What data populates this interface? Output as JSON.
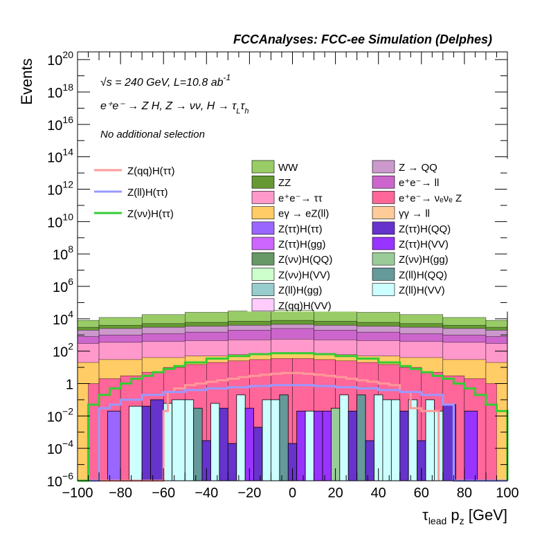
{
  "chart_data": {
    "type": "bar",
    "title": "FCCAnalyses: FCC-ee Simulation (Delphes)",
    "annotations": {
      "energy": "√s = 240 GeV, L=10.8 ab",
      "energy_exp": "-1",
      "process_lead": "e⁺e⁻ → Z H, Z → νν, H → τ",
      "process_sub1": "L",
      "process_tau2": "τ",
      "process_sub2": "h",
      "selection": "No additional selection"
    },
    "xlabel": "τ",
    "xlabel_sub": "lead",
    "xlabel_rest": " p",
    "xlabel_sub2": "z",
    "xlabel_unit": " [GeV]",
    "ylabel": "Events",
    "xlim": [
      -100,
      100
    ],
    "ylim": [
      1e-06,
      3e+20
    ],
    "yscale": "log",
    "x_ticks": [
      -100,
      -80,
      -60,
      -40,
      -20,
      0,
      20,
      40,
      60,
      80,
      100
    ],
    "x_tick_labels": [
      "−100",
      "−80",
      "−60",
      "−40",
      "−20",
      "0",
      "20",
      "40",
      "60",
      "80",
      "100"
    ],
    "y_ticks": [
      {
        "value": 1e-06,
        "base": "10",
        "exp": "−6"
      },
      {
        "value": 0.0001,
        "base": "10",
        "exp": "−4"
      },
      {
        "value": 0.01,
        "base": "10",
        "exp": "−2"
      },
      {
        "value": 1,
        "base": "1",
        "exp": ""
      },
      {
        "value": 100.0,
        "base": "10",
        "exp": "2"
      },
      {
        "value": 10000.0,
        "base": "10",
        "exp": "4"
      },
      {
        "value": 1000000.0,
        "base": "10",
        "exp": "6"
      },
      {
        "value": 100000000.0,
        "base": "10",
        "exp": "8"
      },
      {
        "value": 10000000000.0,
        "base": "10",
        "exp": "10"
      },
      {
        "value": 1000000000000.0,
        "base": "10",
        "exp": "12"
      },
      {
        "value": 100000000000000.0,
        "base": "10",
        "exp": "14"
      },
      {
        "value": 1e+16,
        "base": "10",
        "exp": "16"
      },
      {
        "value": 1e+18,
        "base": "10",
        "exp": "18"
      },
      {
        "value": 1e+20,
        "base": "10",
        "exp": "20"
      }
    ],
    "stacked_backgrounds": [
      {
        "name": "WW",
        "color": "#99cc66",
        "edges": [
          -100,
          -90,
          -70,
          -50,
          -30,
          -10,
          10,
          30,
          50,
          70,
          90,
          100
        ],
        "tops": [
          8000,
          12000,
          18000,
          25000,
          30000,
          33000,
          30000,
          25000,
          18000,
          12000,
          8000
        ]
      },
      {
        "name": "ZZ",
        "color": "#669933",
        "edges": [
          -100,
          -90,
          -70,
          -50,
          -30,
          -10,
          10,
          30,
          50,
          70,
          90,
          100
        ],
        "tops": [
          3000,
          4000,
          5000,
          6000,
          7000,
          8000,
          7000,
          6000,
          5000,
          4000,
          3000
        ]
      },
      {
        "name": "Z → QQ",
        "color": "#cc99cc",
        "edges": [
          -100,
          -90,
          -70,
          -50,
          -30,
          -10,
          10,
          30,
          50,
          70,
          90,
          100
        ],
        "tops": [
          2000,
          2500,
          3000,
          3500,
          4000,
          4500,
          4000,
          3500,
          3000,
          2500,
          2000
        ]
      },
      {
        "name": "e⁺e⁻ → ll",
        "color": "#cc66cc",
        "edges": [
          -100,
          -90,
          -70,
          -50,
          -30,
          -10,
          10,
          30,
          50,
          70,
          90,
          100
        ],
        "tops": [
          800,
          1000,
          1200,
          1500,
          2000,
          2500,
          2000,
          1500,
          1200,
          1000,
          800
        ]
      },
      {
        "name": "e⁺e⁻ → ττ",
        "color": "#ff99cc",
        "edges": [
          -100,
          -90,
          -70,
          -50,
          -30,
          -10,
          10,
          30,
          50,
          70,
          90,
          100
        ],
        "tops": [
          300,
          350,
          400,
          450,
          500,
          550,
          500,
          450,
          400,
          350,
          300
        ]
      },
      {
        "name": "eγ → eZ(ll)",
        "color": "#ffcc66",
        "edges": [
          -100,
          -90,
          -70,
          -50,
          -30,
          -10,
          10,
          30,
          50,
          70,
          90,
          100
        ],
        "tops": [
          20,
          30,
          40,
          50,
          60,
          70,
          60,
          50,
          40,
          30,
          20
        ]
      },
      {
        "name": "e⁺e⁻ → νₑνₑ Z",
        "color": "#ff6699",
        "edges": [
          -100,
          -95,
          -90,
          -80,
          -70,
          -60,
          -50,
          -40,
          -30,
          -20,
          -10,
          0,
          10,
          20,
          30,
          40,
          50,
          60,
          70,
          80,
          90,
          95,
          100
        ],
        "tops": [
          1e-06,
          1,
          2,
          3,
          5,
          10,
          15,
          20,
          25,
          30,
          35,
          35,
          30,
          25,
          20,
          15,
          10,
          5,
          3,
          2,
          1,
          1e-06
        ]
      }
    ],
    "signal_lines": [
      {
        "name": "Z(qq)H(ττ)",
        "color": "#ff9999",
        "edges": [
          -100,
          -60,
          -58,
          -55,
          -50,
          -45,
          -40,
          -35,
          -30,
          -25,
          -20,
          -15,
          -10,
          -5,
          0,
          5,
          10,
          15,
          20,
          25,
          30,
          35,
          40,
          45,
          50,
          55,
          60,
          65,
          68
        ],
        "values": [
          1e-06,
          0.02,
          0.3,
          0.5,
          0.8,
          1.0,
          1.3,
          1.6,
          2.0,
          2.5,
          3.0,
          3.5,
          4.0,
          4.5,
          4.5,
          4.0,
          3.5,
          3.0,
          2.5,
          2.0,
          1.6,
          1.3,
          1.0,
          0.8,
          0.3,
          0.03,
          0.02,
          0.02
        ]
      },
      {
        "name": "Z(ll)H(ττ)",
        "color": "#9999ff",
        "edges": [
          -100,
          -90,
          -85,
          -80,
          -70,
          -60,
          -50,
          -40,
          -30,
          -20,
          -10,
          0,
          10,
          20,
          30,
          40,
          50,
          60,
          70,
          75,
          100
        ],
        "values": [
          1e-06,
          0.03,
          0.05,
          0.1,
          0.2,
          0.3,
          0.4,
          0.5,
          0.6,
          0.7,
          0.8,
          0.8,
          0.7,
          0.6,
          0.5,
          0.4,
          0.3,
          0.2,
          0.05,
          1e-06
        ]
      },
      {
        "name": "Z(νν)H(ττ)",
        "color": "#33cc33",
        "edges": [
          -100,
          -95,
          -90,
          -85,
          -80,
          -75,
          -70,
          -65,
          -60,
          -55,
          -50,
          -40,
          -30,
          -20,
          -10,
          0,
          10,
          20,
          30,
          40,
          50,
          55,
          60,
          65,
          70,
          75,
          80,
          85,
          90,
          95,
          100
        ],
        "values": [
          1e-06,
          0.05,
          0.2,
          0.5,
          1,
          2,
          3,
          5,
          8,
          12,
          20,
          35,
          50,
          65,
          75,
          75,
          65,
          50,
          35,
          20,
          12,
          8,
          5,
          3,
          2,
          1,
          0.5,
          0.2,
          0.05,
          0.02
        ]
      }
    ],
    "legend_lines": [
      "Z(qq)H(ττ)",
      "Z(ll)H(ττ)",
      "Z(νν)H(ττ)"
    ],
    "legend_boxes": [
      {
        "label": "WW",
        "color": "#99cc66"
      },
      {
        "label": "Z → QQ",
        "color": "#cc99cc"
      },
      {
        "label": "ZZ",
        "color": "#669933"
      },
      {
        "label": "e⁺e⁻→ ll",
        "color": "#cc66cc"
      },
      {
        "label": "e⁺e⁻→ ττ",
        "color": "#ff99cc"
      },
      {
        "label": "e⁺e⁻→ νₑνₑ Z",
        "color": "#ff6699"
      },
      {
        "label": "eγ → eZ(ll)",
        "color": "#ffcc66"
      },
      {
        "label": "γγ → ll",
        "color": "#ffcc99"
      },
      {
        "label": "Z(ττ)H(ττ)",
        "color": "#9966ff"
      },
      {
        "label": "Z(ττ)H(QQ)",
        "color": "#6633cc"
      },
      {
        "label": "Z(ττ)H(gg)",
        "color": "#cc66ff"
      },
      {
        "label": "Z(ττ)H(VV)",
        "color": "#9933ff"
      },
      {
        "label": "Z(νν)H(QQ)",
        "color": "#669966"
      },
      {
        "label": "Z(νν)H(gg)",
        "color": "#99cc99"
      },
      {
        "label": "Z(νν)H(VV)",
        "color": "#ccffcc"
      },
      {
        "label": "Z(ll)H(QQ)",
        "color": "#669999"
      },
      {
        "label": "Z(ll)H(gg)",
        "color": "#99cccc"
      },
      {
        "label": "Z(ll)H(VV)",
        "color": "#ccffff"
      },
      {
        "label": "Z(qq)H(VV)",
        "color": "#ffccff"
      }
    ],
    "minor_bars": [
      {
        "x0": -86,
        "x1": -80,
        "value": 0.02,
        "color": "#9966ff"
      },
      {
        "x0": -76,
        "x1": -70,
        "value": 0.04,
        "color": "#ccffff"
      },
      {
        "x0": -70,
        "x1": -66,
        "value": 0.04,
        "color": "#6633cc"
      },
      {
        "x0": -66,
        "x1": -60,
        "value": 0.1,
        "color": "#6633cc"
      },
      {
        "x0": -60,
        "x1": -56,
        "value": 0.06,
        "color": "#ccffff"
      },
      {
        "x0": -56,
        "x1": -50,
        "value": 0.1,
        "color": "#ccffff"
      },
      {
        "x0": -50,
        "x1": -46,
        "value": 0.1,
        "color": "#ccffff"
      },
      {
        "x0": -46,
        "x1": -42,
        "value": 0.03,
        "color": "#669999"
      },
      {
        "x0": -42,
        "x1": -38,
        "value": 0.0003,
        "color": "#6633cc"
      },
      {
        "x0": -38,
        "x1": -34,
        "value": 0.06,
        "color": "#ccffff"
      },
      {
        "x0": -34,
        "x1": -30,
        "value": 0.03,
        "color": "#6633cc"
      },
      {
        "x0": -30,
        "x1": -26,
        "value": 0.0002,
        "color": "#6633cc"
      },
      {
        "x0": -26,
        "x1": -22,
        "value": 0.2,
        "color": "#ccffff"
      },
      {
        "x0": -22,
        "x1": -18,
        "value": 0.03,
        "color": "#9933ff"
      },
      {
        "x0": -18,
        "x1": -14,
        "value": 0.002,
        "color": "#6633cc"
      },
      {
        "x0": -14,
        "x1": -10,
        "value": 0.1,
        "color": "#ccffff"
      },
      {
        "x0": -10,
        "x1": -6,
        "value": 0.1,
        "color": "#ccffff"
      },
      {
        "x0": -6,
        "x1": -2,
        "value": 0.2,
        "color": "#669999"
      },
      {
        "x0": -2,
        "x1": 2,
        "value": 0.0002,
        "color": "#6633cc"
      },
      {
        "x0": 2,
        "x1": 6,
        "value": 0.02,
        "color": "#9933ff"
      },
      {
        "x0": 6,
        "x1": 10,
        "value": 0.02,
        "color": "#ccffff"
      },
      {
        "x0": 10,
        "x1": 14,
        "value": 0.02,
        "color": "#9933ff"
      },
      {
        "x0": 14,
        "x1": 18,
        "value": 0.02,
        "color": "#9933ff"
      },
      {
        "x0": 18,
        "x1": 22,
        "value": 0.03,
        "color": "#99cc99"
      },
      {
        "x0": 22,
        "x1": 26,
        "value": 0.2,
        "color": "#ccffff"
      },
      {
        "x0": 26,
        "x1": 30,
        "value": 0.02,
        "color": "#6633cc"
      },
      {
        "x0": 30,
        "x1": 34,
        "value": 0.2,
        "color": "#669999"
      },
      {
        "x0": 34,
        "x1": 38,
        "value": 0.0003,
        "color": "#6633cc"
      },
      {
        "x0": 38,
        "x1": 42,
        "value": 0.2,
        "color": "#ccffff"
      },
      {
        "x0": 42,
        "x1": 46,
        "value": 0.1,
        "color": "#ccffff"
      },
      {
        "x0": 46,
        "x1": 50,
        "value": 0.1,
        "color": "#ccffff"
      },
      {
        "x0": 50,
        "x1": 54,
        "value": 0.02,
        "color": "#6633cc"
      },
      {
        "x0": 54,
        "x1": 58,
        "value": 0.1,
        "color": "#ccffff"
      },
      {
        "x0": 58,
        "x1": 62,
        "value": 0.0003,
        "color": "#6633cc"
      },
      {
        "x0": 62,
        "x1": 66,
        "value": 0.1,
        "color": "#ccffff"
      },
      {
        "x0": 66,
        "x1": 70,
        "value": 0.02,
        "color": "#ccffff"
      },
      {
        "x0": 70,
        "x1": 76,
        "value": 0.05,
        "color": "#6633cc"
      },
      {
        "x0": 80,
        "x1": 86,
        "value": 0.02,
        "color": "#9933ff"
      }
    ]
  }
}
